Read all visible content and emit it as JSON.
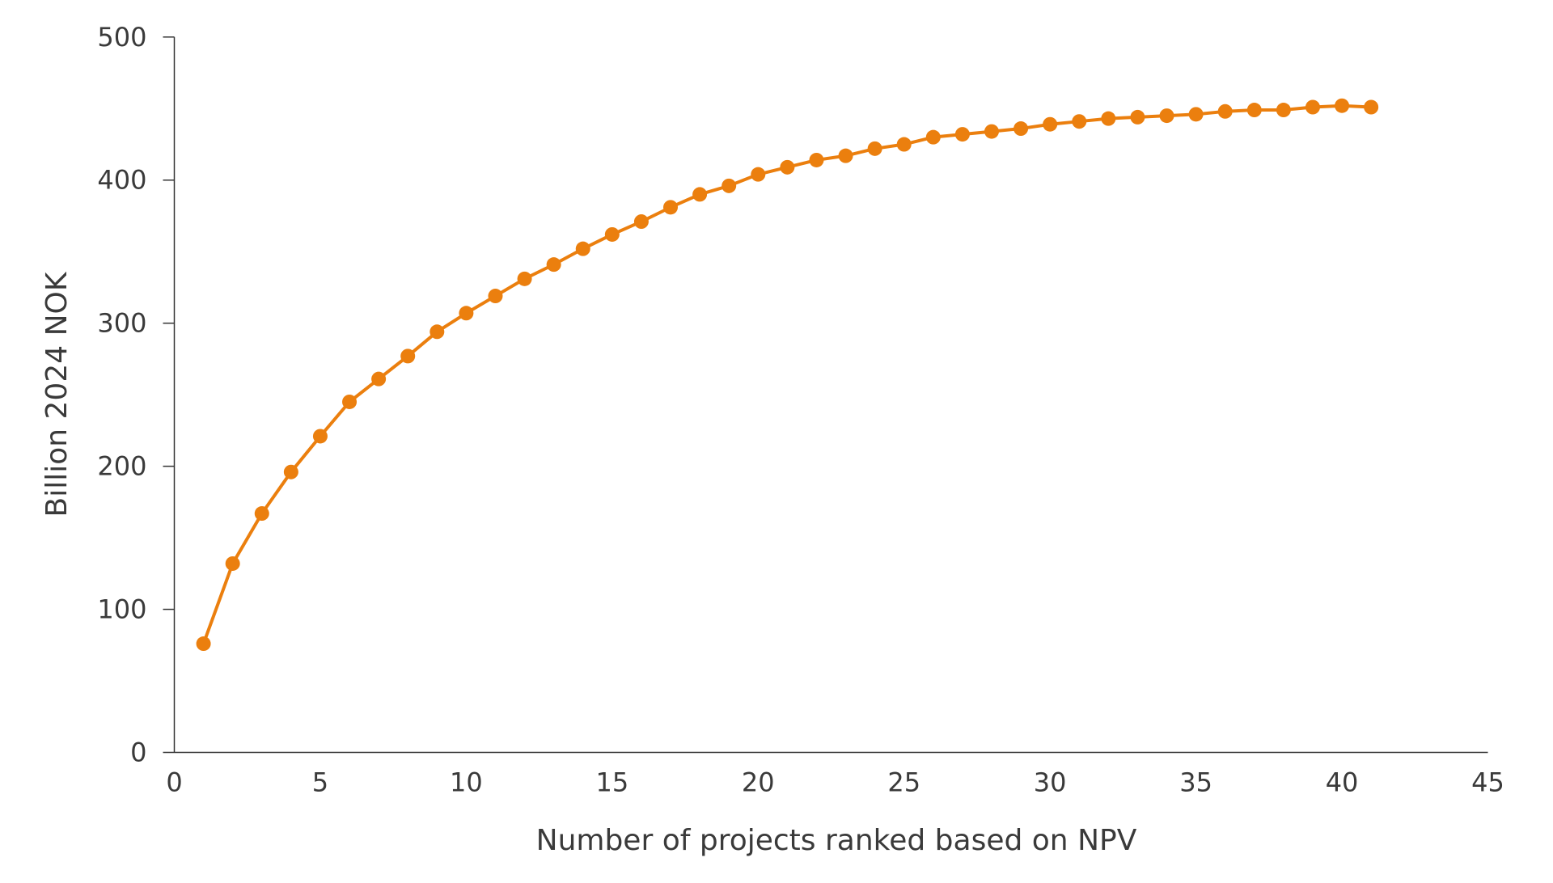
{
  "chart_data": {
    "type": "line",
    "title": "",
    "xlabel": "Number of projects ranked based on NPV",
    "ylabel": "Billion 2024 NOK",
    "xlim": [
      0,
      45
    ],
    "ylim": [
      0,
      500
    ],
    "xticks": [
      "0",
      "5",
      "10",
      "15",
      "20",
      "25",
      "30",
      "35",
      "40",
      "45"
    ],
    "yticks": [
      "0",
      "100",
      "200",
      "300",
      "400",
      "500"
    ],
    "grid": false,
    "legend": "none",
    "color": "#EB7F0E",
    "series": [
      {
        "x": [
          1,
          2,
          3,
          4,
          5,
          6,
          7,
          8,
          9,
          10,
          11,
          12,
          13,
          14,
          15,
          16,
          17,
          18,
          19,
          20,
          21,
          22,
          23,
          24,
          25,
          26,
          27,
          28,
          29,
          30,
          31,
          32,
          33,
          34,
          35,
          36,
          37,
          38,
          39,
          40,
          41
        ],
        "y": [
          76,
          132,
          167,
          196,
          221,
          245,
          261,
          277,
          294,
          307,
          319,
          331,
          341,
          352,
          362,
          371,
          381,
          390,
          396,
          404,
          409,
          414,
          417,
          422,
          425,
          430,
          432,
          434,
          436,
          439,
          441,
          443,
          444,
          445,
          446,
          448,
          449,
          449,
          451,
          452,
          451
        ]
      }
    ]
  }
}
